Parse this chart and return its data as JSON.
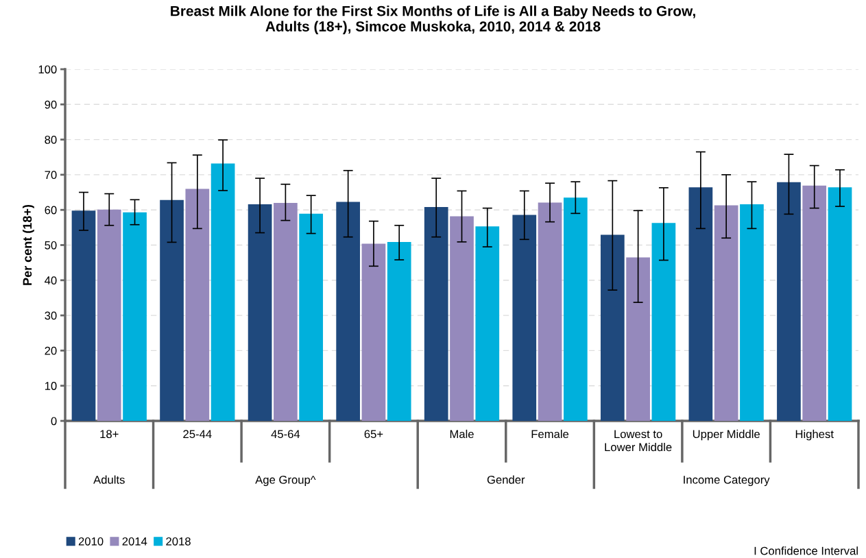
{
  "chart_data": {
    "type": "bar",
    "title": "Breast Milk Alone for the First Six Months of Life is All a Baby Needs to Grow,\nAdults (18+), Simcoe Muskoka, 2010, 2014 & 2018",
    "ylabel": "Per cent (18+)",
    "categories": [
      "18+",
      "25-44",
      "45-64",
      "65+",
      "Male",
      "Female",
      "Lowest to\nLower Middle",
      "Upper Middle",
      "Highest"
    ],
    "series": [
      {
        "name": "2010",
        "color": "#1f497d",
        "values": [
          59.8,
          62.8,
          61.6,
          62.3,
          60.8,
          58.6,
          52.9,
          66.4,
          67.9
        ],
        "errors": [
          [
            54.2,
            65.0
          ],
          [
            50.8,
            73.4
          ],
          [
            53.5,
            69.0
          ],
          [
            52.3,
            71.2
          ],
          [
            52.3,
            69.0
          ],
          [
            51.6,
            65.4
          ],
          [
            37.2,
            68.3
          ],
          [
            54.7,
            76.5
          ],
          [
            58.8,
            75.8
          ]
        ]
      },
      {
        "name": "2014",
        "color": "#9589bc",
        "values": [
          60.1,
          66.0,
          62.0,
          50.4,
          58.2,
          62.1,
          46.5,
          61.3,
          66.9
        ],
        "errors": [
          [
            55.6,
            64.6
          ],
          [
            54.7,
            75.6
          ],
          [
            57.0,
            67.3
          ],
          [
            44.0,
            56.8
          ],
          [
            50.9,
            65.4
          ],
          [
            56.6,
            67.6
          ],
          [
            33.7,
            59.8
          ],
          [
            52.0,
            70.0
          ],
          [
            60.5,
            72.6
          ]
        ]
      },
      {
        "name": "2018",
        "color": "#00b0dc",
        "values": [
          59.3,
          73.2,
          58.9,
          50.9,
          55.3,
          63.5,
          56.3,
          61.6,
          66.4
        ],
        "errors": [
          [
            55.8,
            62.9
          ],
          [
            65.5,
            79.9
          ],
          [
            53.3,
            64.1
          ],
          [
            45.8,
            55.6
          ],
          [
            49.5,
            60.5
          ],
          [
            59.0,
            68.0
          ],
          [
            45.7,
            66.3
          ],
          [
            54.7,
            68.0
          ],
          [
            61.0,
            71.4
          ]
        ]
      }
    ],
    "ylim": [
      0,
      100
    ],
    "yticks": [
      0,
      10,
      20,
      30,
      40,
      50,
      60,
      70,
      80,
      90,
      100
    ],
    "grid": "y",
    "legend": "bottom left",
    "annotations": [
      "Adults",
      "Age Group^",
      "Gender",
      "Income Category",
      "I Confidence Interval"
    ]
  }
}
